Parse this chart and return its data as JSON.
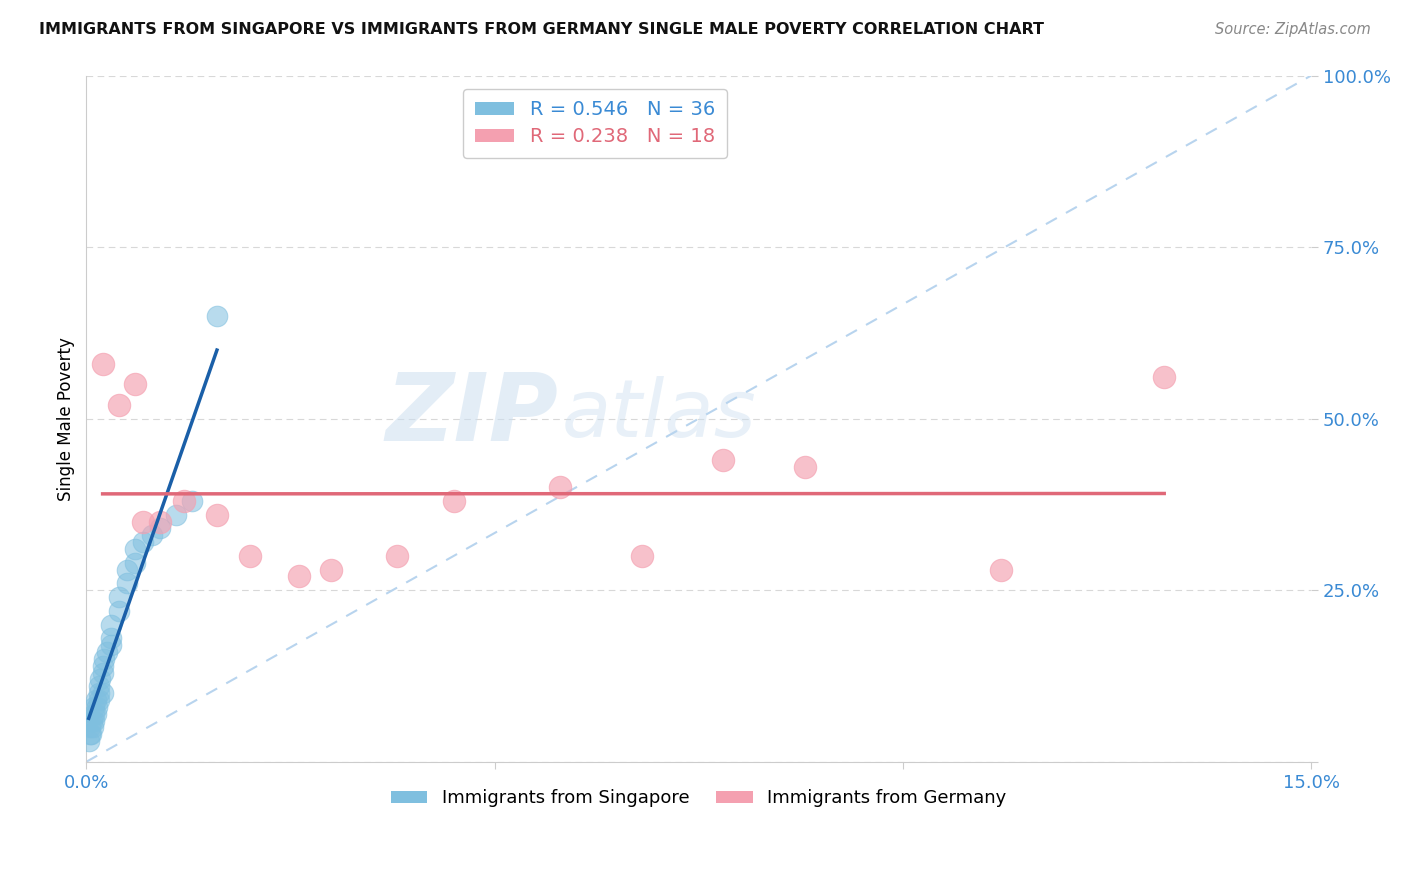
{
  "title": "IMMIGRANTS FROM SINGAPORE VS IMMIGRANTS FROM GERMANY SINGLE MALE POVERTY CORRELATION CHART",
  "source": "Source: ZipAtlas.com",
  "ylabel": "Single Male Poverty",
  "xlim": [
    0.0,
    0.15
  ],
  "ylim": [
    0.0,
    1.0
  ],
  "singapore_x": [
    0.0003,
    0.0004,
    0.0005,
    0.0006,
    0.0007,
    0.0008,
    0.0009,
    0.001,
    0.001,
    0.0012,
    0.0012,
    0.0013,
    0.0015,
    0.0015,
    0.0016,
    0.0017,
    0.002,
    0.002,
    0.002,
    0.0022,
    0.0025,
    0.003,
    0.003,
    0.003,
    0.004,
    0.004,
    0.005,
    0.005,
    0.006,
    0.006,
    0.007,
    0.008,
    0.009,
    0.011,
    0.013,
    0.016
  ],
  "singapore_y": [
    0.03,
    0.04,
    0.05,
    0.04,
    0.06,
    0.05,
    0.07,
    0.06,
    0.08,
    0.07,
    0.09,
    0.08,
    0.09,
    0.1,
    0.11,
    0.12,
    0.1,
    0.13,
    0.14,
    0.15,
    0.16,
    0.17,
    0.18,
    0.2,
    0.22,
    0.24,
    0.26,
    0.28,
    0.29,
    0.31,
    0.32,
    0.33,
    0.34,
    0.36,
    0.38,
    0.65
  ],
  "germany_x": [
    0.002,
    0.004,
    0.006,
    0.007,
    0.009,
    0.012,
    0.016,
    0.02,
    0.026,
    0.03,
    0.038,
    0.045,
    0.058,
    0.068,
    0.078,
    0.088,
    0.112,
    0.132
  ],
  "germany_y": [
    0.58,
    0.52,
    0.55,
    0.35,
    0.35,
    0.38,
    0.36,
    0.3,
    0.27,
    0.28,
    0.3,
    0.38,
    0.4,
    0.3,
    0.44,
    0.43,
    0.28,
    0.56
  ],
  "singapore_color": "#7fbfdf",
  "germany_color": "#f4a0b0",
  "singapore_reg_color": "#1a5fa8",
  "germany_reg_color": "#e06878",
  "diagonal_color": "#b8d4ee",
  "r_singapore": 0.546,
  "n_singapore": 36,
  "r_germany": 0.238,
  "n_germany": 18,
  "background_color": "#ffffff",
  "grid_color": "#d8d8d8"
}
